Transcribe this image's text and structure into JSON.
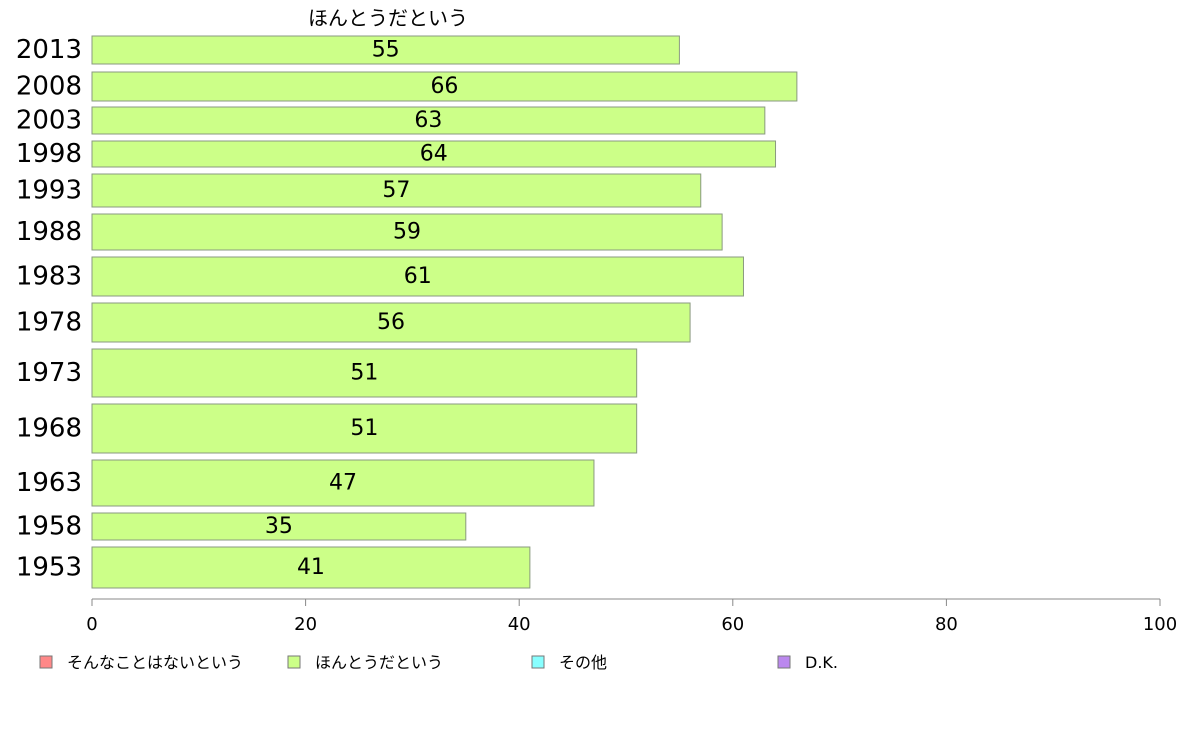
{
  "chart_data": {
    "type": "bar",
    "orientation": "horizontal",
    "title": "ほんとうだという",
    "categories": [
      "2013",
      "2008",
      "2003",
      "1998",
      "1993",
      "1988",
      "1983",
      "1978",
      "1973",
      "1968",
      "1963",
      "1958",
      "1953"
    ],
    "series": [
      {
        "name": "ほんとうだという",
        "color": "#ccff88",
        "values": [
          55,
          66,
          63,
          64,
          57,
          59,
          61,
          56,
          51,
          51,
          47,
          35,
          41
        ]
      }
    ],
    "data_labels": [
      "55",
      "66",
      "63",
      "64",
      "57",
      "59",
      "61",
      "56",
      "51",
      "51",
      "47",
      "35",
      "41"
    ],
    "xlim": [
      0,
      100
    ],
    "xticks": [
      0,
      20,
      40,
      60,
      80,
      100
    ],
    "xtick_labels": [
      "0",
      "20",
      "40",
      "60",
      "80",
      "100"
    ],
    "grid": false,
    "legend_position": "bottom",
    "legend": [
      {
        "label": "そんなことはないという",
        "color": "#ff8888"
      },
      {
        "label": "ほんとうだという",
        "color": "#ccff88"
      },
      {
        "label": "その他",
        "color": "#88ffff"
      },
      {
        "label": "D.K.",
        "color": "#bb88ee"
      }
    ]
  }
}
